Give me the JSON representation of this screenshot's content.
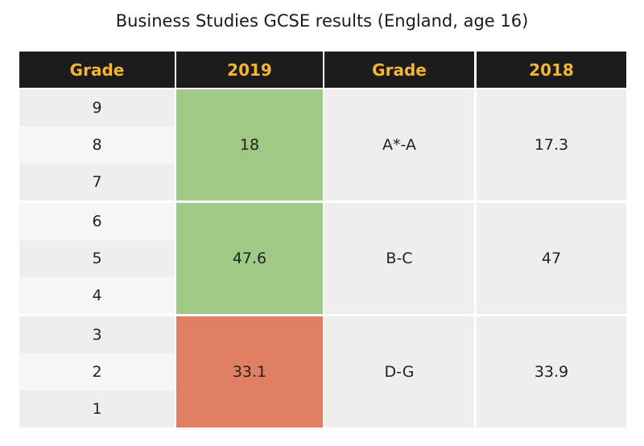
{
  "chart_data": {
    "type": "table",
    "title": "Business Studies GCSE results (England, age 16)",
    "headers": [
      "Grade",
      "2019",
      "Grade",
      "2018"
    ],
    "new_grades": [
      "9",
      "8",
      "7",
      "6",
      "5",
      "4",
      "3",
      "2",
      "1"
    ],
    "groups": [
      {
        "grades_2019": [
          "9",
          "8",
          "7"
        ],
        "value_2019": "18",
        "old_grade": "A*-A",
        "value_2018": "17.3",
        "color_2019": "#9fc985"
      },
      {
        "grades_2019": [
          "6",
          "5",
          "4"
        ],
        "value_2019": "47.6",
        "old_grade": "B-C",
        "value_2018": "47",
        "color_2019": "#9fc985"
      },
      {
        "grades_2019": [
          "3",
          "2",
          "1"
        ],
        "value_2019": "33.1",
        "old_grade": "D-G",
        "value_2018": "33.9",
        "color_2019": "#e07f62"
      }
    ]
  },
  "colors": {
    "header_bg": "#1c1c1c",
    "header_text": "#f2b630",
    "increase": "#9fc985",
    "decrease": "#e07f62"
  }
}
